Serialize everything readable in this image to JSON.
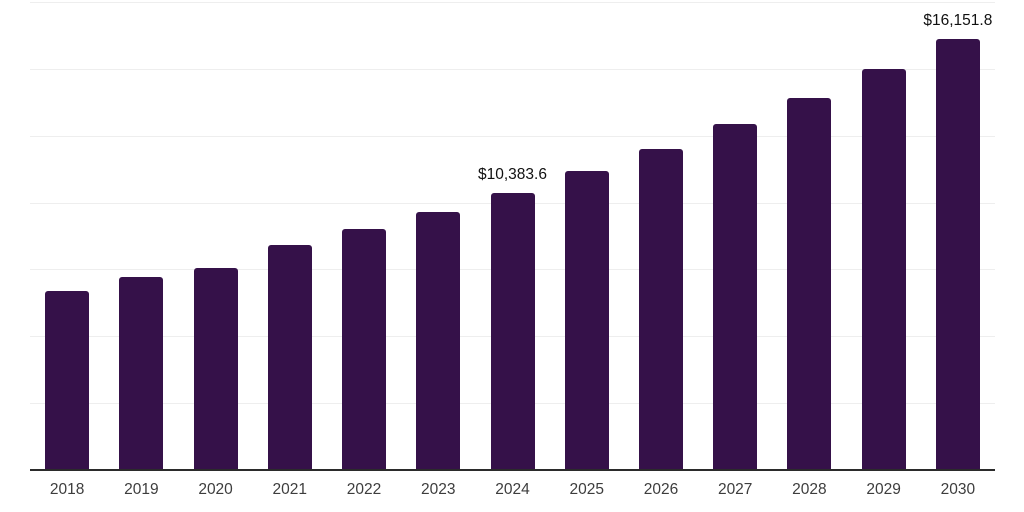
{
  "chart_data": {
    "type": "bar",
    "title": "",
    "xlabel": "",
    "ylabel": "",
    "categories": [
      "2018",
      "2019",
      "2020",
      "2021",
      "2022",
      "2023",
      "2024",
      "2025",
      "2026",
      "2027",
      "2028",
      "2029",
      "2030"
    ],
    "values": [
      6740,
      7260,
      7600,
      8450,
      9050,
      9680,
      10383.6,
      11210,
      12030,
      12960,
      13930,
      15040,
      16151.8
    ],
    "annotations": {
      "2024": "$10,383.6",
      "2030": "$16,151.8"
    },
    "ylim": [
      0,
      17500
    ],
    "grid": true,
    "gridline_step": 2500,
    "legend_position": "none",
    "colors": {
      "bar": "#351149",
      "axis_line": "#2b2b2b",
      "gridline": "#eeeeee",
      "tick_label": "#3d3d3d",
      "value_label": "#111111",
      "background": "#ffffff"
    }
  }
}
